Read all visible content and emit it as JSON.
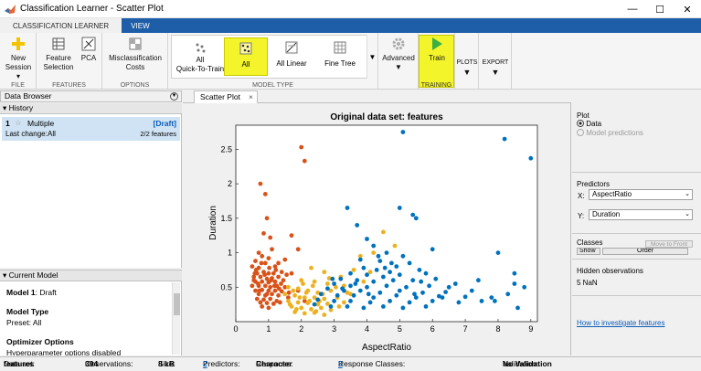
{
  "window": {
    "title": "Classification Learner - Scatter Plot",
    "min": "—",
    "max": "☐",
    "close": "✕"
  },
  "tabs": [
    {
      "label": "CLASSIFICATION LEARNER"
    },
    {
      "label": "VIEW"
    }
  ],
  "ribbon": {
    "file": {
      "new_session": "New",
      "new_session2": "Session",
      "label": "FILE"
    },
    "features": {
      "feature_selection": "Feature",
      "feature_selection2": "Selection",
      "pca": "PCA",
      "label": "FEATURES"
    },
    "options": {
      "misclass": "Misclassification",
      "misclass2": "Costs",
      "label": "OPTIONS"
    },
    "model_type": {
      "label": "MODEL TYPE",
      "items": [
        {
          "label": "All",
          "label2": "Quick-To-Train"
        },
        {
          "label": "All",
          "label2": ""
        },
        {
          "label": "All Linear",
          "label2": ""
        },
        {
          "label": "Fine Tree",
          "label2": ""
        }
      ]
    },
    "advanced": "Advanced",
    "train": {
      "label": "Train",
      "group": "TRAINING"
    },
    "plots": "PLOTS",
    "export": "EXPORT"
  },
  "data_browser": {
    "title": "Data Browser"
  },
  "history": {
    "title": "History",
    "item": {
      "number": "1",
      "name": "Multiple",
      "status": "[Draft]",
      "last_change_label": "Last change:",
      "last_change_value": "All",
      "features": "2/2 features"
    }
  },
  "current_model": {
    "title": "Current Model",
    "model_label": "Model 1",
    "model_state": ": Draft",
    "type_heading": "Model Type",
    "preset": "Preset: All",
    "opt_heading": "Optimizer Options",
    "opt_text": "Hyperparameter options disabled"
  },
  "plot_tab": {
    "label": "Scatter Plot",
    "close": "×"
  },
  "right_panel": {
    "plot_heading": "Plot",
    "radio_data": "Data",
    "radio_predictions": "Model predictions",
    "predictors_heading": "Predictors",
    "x_label": "X:",
    "x_value": "AspectRatio",
    "y_label": "Y:",
    "y_value": "Duration",
    "classes_heading": "Classes",
    "show_btn": "Show",
    "order_btn": "Order",
    "move_front_btn": "Move to Front",
    "hidden_heading": "Hidden observations",
    "hidden_value": "5 NaN",
    "link": "How to investigate features"
  },
  "status": {
    "dataset_label": "Data set:",
    "dataset_value": "features",
    "obs_label": "Observations:",
    "obs_value": "394",
    "size_label": "Size:",
    "size_value": "8 kB",
    "pred_label": "Predictors:",
    "pred_value": "2",
    "resp_label": "Response:",
    "resp_value": "Character",
    "classes_label": "Response Classes:",
    "classes_value": "3",
    "valid_label": "Validation:",
    "valid_value": "No Validation"
  },
  "colors": {
    "blue": "#0072bd",
    "orange": "#d95319",
    "yellow": "#edb120",
    "highlight": "#f4f42b",
    "tabbar": "#1e5ea8"
  },
  "chart_data": {
    "type": "scatter",
    "title": "Original data set: features",
    "xlabel": "AspectRatio",
    "ylabel": "Duration",
    "xlim": [
      0,
      9.2
    ],
    "ylim": [
      0,
      2.85
    ],
    "xticks": [
      0,
      1,
      2,
      3,
      4,
      5,
      6,
      7,
      8,
      9
    ],
    "yticks": [
      0.5,
      1,
      1.5,
      2,
      2.5
    ],
    "grid": false,
    "series": [
      {
        "color": "#d95319",
        "points": [
          [
            0.75,
            2.0
          ],
          [
            0.9,
            1.85
          ],
          [
            0.95,
            1.5
          ],
          [
            0.85,
            1.28
          ],
          [
            1.05,
            1.22
          ],
          [
            2.0,
            2.53
          ],
          [
            2.1,
            2.33
          ],
          [
            1.7,
            1.25
          ],
          [
            1.9,
            1.05
          ],
          [
            0.7,
            1.0
          ],
          [
            1.1,
            1.05
          ],
          [
            0.8,
            0.95
          ],
          [
            1.0,
            0.92
          ],
          [
            0.6,
            0.88
          ],
          [
            0.9,
            0.85
          ],
          [
            1.3,
            0.85
          ],
          [
            0.5,
            0.8
          ],
          [
            0.7,
            0.78
          ],
          [
            1.2,
            0.8
          ],
          [
            1.5,
            0.9
          ],
          [
            0.65,
            0.7
          ],
          [
            0.85,
            0.72
          ],
          [
            1.0,
            0.7
          ],
          [
            1.15,
            0.7
          ],
          [
            1.4,
            0.72
          ],
          [
            0.55,
            0.65
          ],
          [
            0.75,
            0.65
          ],
          [
            0.95,
            0.62
          ],
          [
            1.1,
            0.63
          ],
          [
            1.3,
            0.65
          ],
          [
            0.6,
            0.58
          ],
          [
            0.8,
            0.58
          ],
          [
            1.0,
            0.57
          ],
          [
            1.2,
            0.58
          ],
          [
            1.45,
            0.6
          ],
          [
            1.7,
            0.7
          ],
          [
            0.5,
            0.52
          ],
          [
            0.7,
            0.52
          ],
          [
            0.9,
            0.52
          ],
          [
            1.05,
            0.5
          ],
          [
            1.25,
            0.52
          ],
          [
            1.5,
            0.5
          ],
          [
            0.6,
            0.45
          ],
          [
            0.8,
            0.46
          ],
          [
            1.0,
            0.45
          ],
          [
            1.2,
            0.45
          ],
          [
            1.4,
            0.44
          ],
          [
            0.7,
            0.4
          ],
          [
            0.9,
            0.38
          ],
          [
            1.1,
            0.4
          ],
          [
            1.3,
            0.38
          ],
          [
            0.65,
            0.33
          ],
          [
            0.85,
            0.32
          ],
          [
            1.05,
            0.33
          ],
          [
            1.25,
            0.3
          ],
          [
            1.6,
            0.35
          ],
          [
            0.75,
            0.28
          ],
          [
            0.95,
            0.27
          ],
          [
            1.15,
            0.26
          ],
          [
            1.35,
            0.28
          ],
          [
            0.8,
            0.22
          ],
          [
            1.0,
            0.2
          ],
          [
            0.55,
            0.6
          ],
          [
            0.62,
            0.75
          ],
          [
            1.08,
            0.6
          ],
          [
            0.88,
            0.68
          ],
          [
            1.18,
            0.52
          ],
          [
            0.72,
            0.45
          ],
          [
            0.95,
            0.4
          ],
          [
            1.32,
            0.48
          ],
          [
            1.55,
            0.68
          ],
          [
            0.58,
            0.7
          ],
          [
            0.78,
            0.85
          ],
          [
            1.22,
            0.75
          ],
          [
            0.68,
            0.55
          ],
          [
            1.38,
            0.55
          ],
          [
            1.9,
            0.45
          ],
          [
            2.1,
            0.3
          ],
          [
            1.62,
            0.42
          ],
          [
            1.02,
            0.78
          ]
        ]
      },
      {
        "color": "#edb120",
        "points": [
          [
            4.5,
            1.3
          ],
          [
            4.85,
            1.1
          ],
          [
            4.2,
            1.0
          ],
          [
            3.8,
            0.95
          ],
          [
            2.3,
            0.78
          ],
          [
            2.7,
            0.72
          ],
          [
            3.2,
            0.65
          ],
          [
            3.6,
            0.75
          ],
          [
            4.1,
            0.72
          ],
          [
            2.0,
            0.6
          ],
          [
            2.4,
            0.58
          ],
          [
            2.8,
            0.55
          ],
          [
            3.3,
            0.52
          ],
          [
            3.9,
            0.58
          ],
          [
            1.6,
            0.5
          ],
          [
            1.9,
            0.48
          ],
          [
            2.2,
            0.45
          ],
          [
            2.5,
            0.42
          ],
          [
            2.9,
            0.45
          ],
          [
            3.4,
            0.42
          ],
          [
            1.5,
            0.4
          ],
          [
            1.8,
            0.38
          ],
          [
            2.1,
            0.35
          ],
          [
            2.4,
            0.35
          ],
          [
            2.7,
            0.33
          ],
          [
            3.1,
            0.35
          ],
          [
            1.6,
            0.3
          ],
          [
            1.9,
            0.28
          ],
          [
            2.2,
            0.27
          ],
          [
            2.5,
            0.25
          ],
          [
            2.8,
            0.26
          ],
          [
            3.3,
            0.28
          ],
          [
            1.7,
            0.22
          ],
          [
            2.0,
            0.2
          ],
          [
            2.3,
            0.18
          ],
          [
            2.6,
            0.2
          ],
          [
            2.9,
            0.17
          ],
          [
            1.8,
            0.14
          ],
          [
            2.1,
            0.12
          ],
          [
            2.4,
            0.13
          ],
          [
            2.7,
            0.1
          ],
          [
            1.95,
            0.35
          ],
          [
            2.35,
            0.52
          ],
          [
            2.65,
            0.4
          ],
          [
            3.05,
            0.5
          ],
          [
            1.75,
            0.45
          ],
          [
            2.15,
            0.42
          ],
          [
            2.55,
            0.3
          ],
          [
            1.65,
            0.25
          ],
          [
            2.45,
            0.15
          ],
          [
            2.05,
            0.55
          ],
          [
            3.5,
            0.4
          ],
          [
            2.85,
            0.63
          ],
          [
            1.85,
            0.18
          ],
          [
            2.25,
            0.3
          ],
          [
            3.15,
            0.22
          ]
        ]
      },
      {
        "color": "#0072bd",
        "points": [
          [
            5.1,
            2.75
          ],
          [
            8.2,
            2.65
          ],
          [
            9.0,
            2.37
          ],
          [
            3.4,
            1.65
          ],
          [
            5.0,
            1.65
          ],
          [
            5.4,
            1.55
          ],
          [
            3.7,
            1.4
          ],
          [
            5.5,
            1.5
          ],
          [
            6.0,
            1.05
          ],
          [
            8.0,
            1.0
          ],
          [
            4.0,
            1.2
          ],
          [
            4.2,
            1.1
          ],
          [
            4.6,
            1.0
          ],
          [
            5.1,
            0.95
          ],
          [
            3.8,
            0.9
          ],
          [
            4.4,
            0.88
          ],
          [
            5.3,
            0.85
          ],
          [
            4.9,
            0.8
          ],
          [
            3.9,
            0.78
          ],
          [
            4.3,
            0.75
          ],
          [
            4.7,
            0.72
          ],
          [
            5.6,
            0.75
          ],
          [
            3.5,
            0.7
          ],
          [
            4.0,
            0.68
          ],
          [
            4.5,
            0.65
          ],
          [
            5.0,
            0.68
          ],
          [
            5.8,
            0.7
          ],
          [
            3.2,
            0.62
          ],
          [
            3.7,
            0.6
          ],
          [
            4.2,
            0.58
          ],
          [
            4.8,
            0.6
          ],
          [
            5.4,
            0.6
          ],
          [
            6.1,
            0.62
          ],
          [
            3.0,
            0.55
          ],
          [
            3.5,
            0.52
          ],
          [
            4.0,
            0.5
          ],
          [
            4.6,
            0.52
          ],
          [
            5.2,
            0.5
          ],
          [
            5.9,
            0.52
          ],
          [
            6.5,
            0.5
          ],
          [
            2.8,
            0.48
          ],
          [
            3.3,
            0.45
          ],
          [
            3.8,
            0.45
          ],
          [
            4.4,
            0.42
          ],
          [
            5.0,
            0.45
          ],
          [
            5.7,
            0.42
          ],
          [
            6.4,
            0.43
          ],
          [
            7.2,
            0.45
          ],
          [
            8.3,
            0.4
          ],
          [
            2.6,
            0.4
          ],
          [
            3.1,
            0.38
          ],
          [
            3.6,
            0.38
          ],
          [
            4.2,
            0.35
          ],
          [
            4.9,
            0.38
          ],
          [
            5.5,
            0.35
          ],
          [
            6.2,
            0.37
          ],
          [
            7.0,
            0.36
          ],
          [
            7.8,
            0.35
          ],
          [
            8.8,
            0.5
          ],
          [
            2.5,
            0.32
          ],
          [
            3.0,
            0.3
          ],
          [
            3.5,
            0.3
          ],
          [
            4.1,
            0.28
          ],
          [
            4.7,
            0.3
          ],
          [
            5.3,
            0.28
          ],
          [
            6.0,
            0.3
          ],
          [
            6.8,
            0.28
          ],
          [
            7.5,
            0.3
          ],
          [
            8.5,
            0.55
          ],
          [
            2.4,
            0.25
          ],
          [
            2.9,
            0.22
          ],
          [
            3.4,
            0.22
          ],
          [
            3.9,
            0.2
          ],
          [
            4.5,
            0.22
          ],
          [
            5.1,
            0.2
          ],
          [
            5.8,
            0.22
          ],
          [
            7.9,
            0.3
          ],
          [
            8.5,
            0.7
          ],
          [
            4.35,
            0.95
          ],
          [
            4.75,
            0.85
          ],
          [
            3.65,
            0.55
          ],
          [
            5.45,
            0.4
          ],
          [
            6.7,
            0.55
          ],
          [
            4.05,
            0.4
          ],
          [
            3.25,
            0.48
          ],
          [
            7.4,
            0.6
          ],
          [
            6.3,
            0.35
          ],
          [
            5.65,
            0.58
          ],
          [
            2.95,
            0.62
          ],
          [
            4.55,
            0.78
          ],
          [
            8.6,
            0.2
          ]
        ]
      }
    ]
  }
}
